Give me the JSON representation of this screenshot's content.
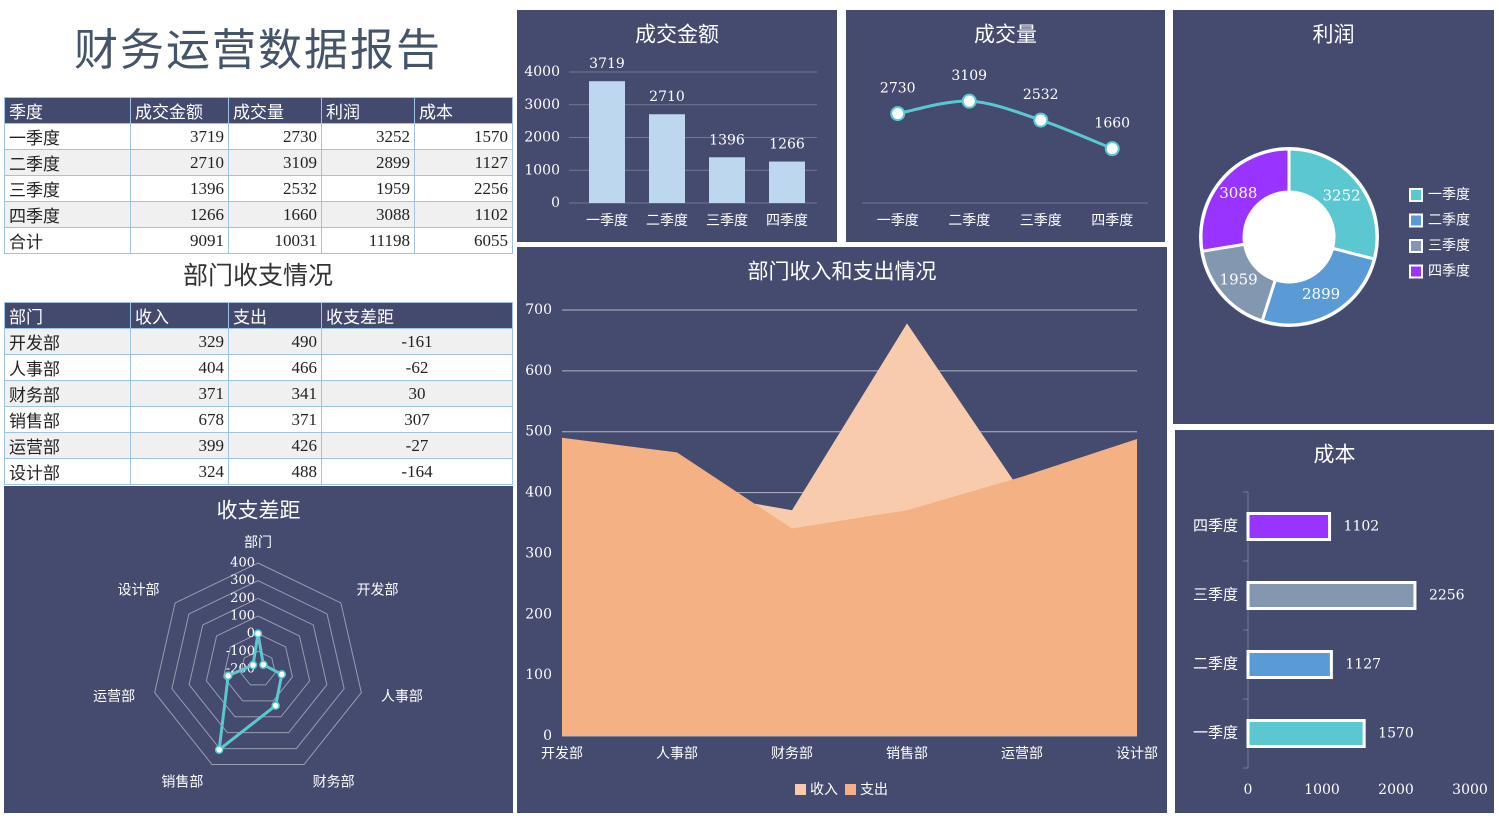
{
  "title": "财务运营数据报告",
  "quarter_table": {
    "columns": [
      "季度",
      "成交金额",
      "成交量",
      "利润",
      "成本"
    ],
    "rows": [
      [
        "一季度",
        3719,
        2730,
        3252,
        1570
      ],
      [
        "二季度",
        2710,
        3109,
        2899,
        1127
      ],
      [
        "三季度",
        1396,
        2532,
        1959,
        2256
      ],
      [
        "四季度",
        1266,
        1660,
        3088,
        1102
      ],
      [
        "合计",
        9091,
        10031,
        11198,
        6055
      ]
    ]
  },
  "dept_table": {
    "title": "部门收支情况",
    "columns": [
      "部门",
      "收入",
      "支出",
      "收支差距"
    ],
    "rows": [
      [
        "开发部",
        329,
        490,
        -161
      ],
      [
        "人事部",
        404,
        466,
        -62
      ],
      [
        "财务部",
        371,
        341,
        30
      ],
      [
        "销售部",
        678,
        371,
        307
      ],
      [
        "运营部",
        399,
        426,
        -27
      ],
      [
        "设计部",
        324,
        488,
        -164
      ]
    ]
  },
  "chart_data": [
    {
      "type": "bar",
      "title": "成交金额",
      "categories": [
        "一季度",
        "二季度",
        "三季度",
        "四季度"
      ],
      "values": [
        3719,
        2710,
        1396,
        1266
      ],
      "color": "#bdd7ee",
      "ylim": [
        0,
        4000
      ],
      "yticks": [
        0,
        1000,
        2000,
        3000,
        4000
      ],
      "grid": true
    },
    {
      "type": "line",
      "title": "成交量",
      "categories": [
        "一季度",
        "二季度",
        "三季度",
        "四季度"
      ],
      "values": [
        2730,
        3109,
        2532,
        1660
      ],
      "color": "#5bc8d1",
      "ylim": [
        0,
        4000
      ]
    },
    {
      "type": "pie",
      "title": "利润",
      "categories": [
        "一季度",
        "二季度",
        "三季度",
        "四季度"
      ],
      "values": [
        3252,
        2899,
        1959,
        3088
      ],
      "colors": [
        "#5bc8d1",
        "#5b9bd5",
        "#8497b0",
        "#9933ff"
      ],
      "legend": "right"
    },
    {
      "type": "barh",
      "title": "成本",
      "categories": [
        "一季度",
        "二季度",
        "三季度",
        "四季度"
      ],
      "values": [
        1570,
        1127,
        2256,
        1102
      ],
      "colors": [
        "#5bc8d1",
        "#5b9bd5",
        "#8497b0",
        "#9933ff"
      ],
      "xlim": [
        0,
        3000
      ],
      "xticks": [
        0,
        1000,
        2000,
        3000
      ]
    },
    {
      "type": "radar",
      "title": "收支差距",
      "categories": [
        "部门",
        "开发部",
        "人事部",
        "财务部",
        "销售部",
        "运营部",
        "设计部"
      ],
      "values": [
        0,
        -161,
        -62,
        30,
        307,
        -27,
        -164
      ],
      "color": "#5bc8d1",
      "rlim": [
        -200,
        400
      ],
      "rticks": [
        -200,
        -100,
        0,
        100,
        200,
        300,
        400
      ]
    },
    {
      "type": "area",
      "title": "部门收入和支出情况",
      "categories": [
        "开发部",
        "人事部",
        "财务部",
        "销售部",
        "运营部",
        "设计部"
      ],
      "series": [
        {
          "name": "收入",
          "color": "#f8cbad",
          "values": [
            329,
            404,
            371,
            678,
            399,
            324
          ]
        },
        {
          "name": "支出",
          "color": "#f4b183",
          "values": [
            490,
            466,
            341,
            371,
            426,
            488
          ]
        }
      ],
      "ylim": [
        0,
        700
      ],
      "yticks": [
        0,
        100,
        200,
        300,
        400,
        500,
        600,
        700
      ],
      "grid": true,
      "legend": "bottom"
    }
  ]
}
